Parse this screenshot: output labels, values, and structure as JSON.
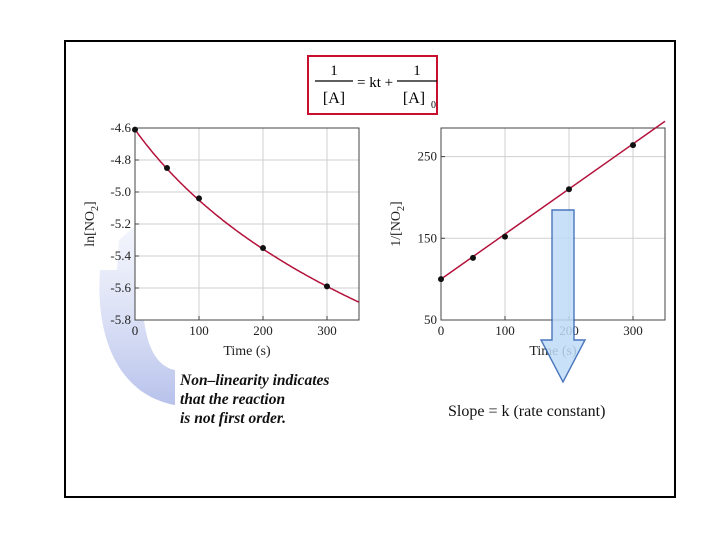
{
  "formula": {
    "text": "1/[A] = kt + 1/[A]0",
    "numerator_left": "1",
    "denominator_left": "[A]",
    "equals": "= kt +",
    "numerator_right": "1",
    "denominator_right": "[A]",
    "subscript": "0"
  },
  "annotation": {
    "lines": [
      "Non–linearity indicates",
      "that the reaction",
      "is not first order."
    ]
  },
  "slope_label": "Slope = k (rate constant)",
  "colors": {
    "curve": "#b3123a",
    "grid": "#cfcfcf",
    "point": "#111111",
    "arrow_fill": "#bfdcf7",
    "arrow_stroke": "#2b5fb3",
    "curved_arrow": "#b9c3ea",
    "formula_border": "#c8102e"
  },
  "chart_data": [
    {
      "type": "scatter",
      "xlabel": "Time (s)",
      "ylabel": "ln[NO2]",
      "ylabel_main": "ln[NO",
      "ylabel_sub": "2",
      "ylabel_end": "]",
      "xlim": [
        0,
        350
      ],
      "ylim": [
        -5.8,
        -4.6
      ],
      "xticks": [
        "0",
        "100",
        "200",
        "300"
      ],
      "xtick_values": [
        0,
        100,
        200,
        300
      ],
      "yticks": [
        "-4.6",
        "-4.8",
        "-5.0",
        "-5.2",
        "-5.4",
        "-5.6",
        "-5.8"
      ],
      "ytick_values": [
        -4.6,
        -4.8,
        -5.0,
        -5.2,
        -5.4,
        -5.6,
        -5.8
      ],
      "grid": true,
      "x": [
        0,
        50,
        100,
        200,
        300
      ],
      "y": [
        -4.61,
        -4.85,
        -5.04,
        -5.35,
        -5.59
      ],
      "curve": true
    },
    {
      "type": "scatter",
      "xlabel": "Time (s)",
      "ylabel": "1/[NO2]",
      "ylabel_main": "1/[NO",
      "ylabel_sub": "2",
      "ylabel_end": "]",
      "xlim": [
        0,
        350
      ],
      "ylim": [
        50,
        285
      ],
      "xticks": [
        "0",
        "100",
        "200",
        "300"
      ],
      "xtick_values": [
        0,
        100,
        200,
        300
      ],
      "yticks": [
        "250",
        "150",
        "50"
      ],
      "ytick_values": [
        250,
        150,
        50
      ],
      "grid": true,
      "x": [
        0,
        50,
        100,
        200,
        300
      ],
      "y": [
        100,
        126,
        152,
        210,
        264
      ],
      "fit_line": {
        "slope": 0.552,
        "intercept": 100
      }
    }
  ]
}
